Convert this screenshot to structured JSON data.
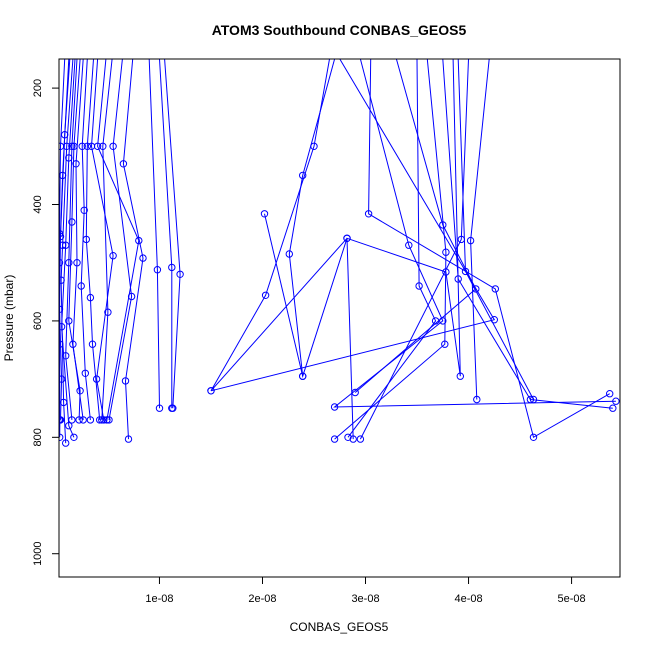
{
  "chart_data": {
    "type": "line",
    "title": "ATOM3 Southbound CONBAS_GEOS5",
    "xlabel": "CONBAS_GEOS5",
    "ylabel": "Pressure (mbar)",
    "xlim": [
      2.5e-10,
      5.47e-08
    ],
    "ylim": [
      1040,
      150
    ],
    "y_inverted": true,
    "x_ticks": [
      {
        "value": 1e-08,
        "label": "1e-08"
      },
      {
        "value": 2e-08,
        "label": "2e-08"
      },
      {
        "value": 3e-08,
        "label": "3e-08"
      },
      {
        "value": 4e-08,
        "label": "4e-08"
      },
      {
        "value": 5e-08,
        "label": "5e-08"
      }
    ],
    "y_ticks": [
      {
        "value": 200,
        "label": "200"
      },
      {
        "value": 400,
        "label": "400"
      },
      {
        "value": 600,
        "label": "600"
      },
      {
        "value": 800,
        "label": "800"
      },
      {
        "value": 1000,
        "label": "1000"
      }
    ],
    "series_color": "#0000ff",
    "marker": "open-circle",
    "grid": false,
    "series": [
      {
        "points": [
          [
            8e-10,
            150
          ],
          [
            4e-10,
            300
          ],
          [
            3e-10,
            450
          ],
          [
            2.6e-10,
            770
          ]
        ]
      },
      {
        "points": [
          [
            1.2e-09,
            150
          ],
          [
            6e-10,
            350
          ],
          [
            3e-10,
            500
          ],
          [
            3.2e-10,
            640
          ],
          [
            3.2e-10,
            800
          ],
          [
            3.4e-10,
            770
          ]
        ]
      },
      {
        "points": [
          [
            1.3e-09,
            150
          ],
          [
            8e-10,
            280
          ],
          [
            4e-10,
            455
          ],
          [
            3e-10,
            580
          ],
          [
            5e-10,
            700
          ],
          [
            4e-10,
            770
          ]
        ]
      },
      {
        "points": [
          [
            1.6e-09,
            150
          ],
          [
            1e-09,
            300
          ],
          [
            6e-10,
            470
          ],
          [
            4.5e-10,
            530
          ],
          [
            7e-10,
            740
          ],
          [
            9e-10,
            810
          ]
        ]
      },
      {
        "points": [
          [
            1.8e-09,
            150
          ],
          [
            1.2e-09,
            320
          ],
          [
            9e-10,
            470
          ],
          [
            5e-10,
            610
          ],
          [
            1.2e-09,
            780
          ],
          [
            1.7e-09,
            800
          ]
        ]
      },
      {
        "points": [
          [
            2e-09,
            150
          ],
          [
            1.5e-09,
            300
          ],
          [
            1.2e-09,
            500
          ],
          [
            9e-10,
            660
          ],
          [
            1.5e-09,
            770
          ]
        ]
      },
      {
        "points": [
          [
            2.3e-09,
            150
          ],
          [
            1.7e-09,
            300
          ],
          [
            1.5e-09,
            430
          ],
          [
            1.2e-09,
            600
          ],
          [
            2.3e-09,
            720
          ],
          [
            2.2e-09,
            770
          ]
        ]
      },
      {
        "points": [
          [
            2.6e-09,
            150
          ],
          [
            1.9e-09,
            330
          ],
          [
            2e-09,
            500
          ],
          [
            1.6e-09,
            640
          ],
          [
            2.6e-09,
            770
          ]
        ]
      },
      {
        "points": [
          [
            3e-09,
            150
          ],
          [
            2.5e-09,
            300
          ],
          [
            2.7e-09,
            410
          ],
          [
            2.4e-09,
            540
          ],
          [
            2.8e-09,
            690
          ],
          [
            3.3e-09,
            770
          ]
        ]
      },
      {
        "points": [
          [
            3.6e-09,
            150
          ],
          [
            3e-09,
            300
          ],
          [
            2.9e-09,
            460
          ],
          [
            3.3e-09,
            560
          ],
          [
            3.5e-09,
            640
          ],
          [
            4.2e-09,
            770
          ]
        ]
      },
      {
        "points": [
          [
            4e-09,
            150
          ],
          [
            3.4e-09,
            300
          ],
          [
            5.5e-09,
            488
          ],
          [
            3.9e-09,
            700
          ],
          [
            4.6e-09,
            770
          ]
        ]
      },
      {
        "points": [
          [
            4.8e-09,
            150
          ],
          [
            4e-09,
            300
          ],
          [
            8e-09,
            462
          ],
          [
            4.9e-09,
            770
          ]
        ]
      },
      {
        "points": [
          [
            5.4e-09,
            150
          ],
          [
            4.5e-09,
            300
          ],
          [
            5e-09,
            585
          ],
          [
            4.4e-09,
            770
          ]
        ]
      },
      {
        "points": [
          [
            6.4e-09,
            150
          ],
          [
            5.5e-09,
            300
          ],
          [
            7.3e-09,
            558
          ],
          [
            5.1e-09,
            770
          ]
        ]
      },
      {
        "points": [
          [
            7.4e-09,
            150
          ],
          [
            6.5e-09,
            330
          ],
          [
            8.4e-09,
            492
          ],
          [
            6.7e-09,
            703
          ],
          [
            7e-09,
            803
          ]
        ]
      },
      {
        "points": [
          [
            9e-09,
            150
          ],
          [
            9.8e-09,
            512
          ],
          [
            1e-08,
            750
          ]
        ]
      },
      {
        "points": [
          [
            1e-08,
            150
          ],
          [
            1.12e-08,
            508
          ],
          [
            1.12e-08,
            750
          ]
        ]
      },
      {
        "points": [
          [
            1.05e-08,
            150
          ],
          [
            1.2e-08,
            520
          ],
          [
            1.13e-08,
            750
          ]
        ]
      },
      {
        "points": [
          [
            2.65e-08,
            150
          ],
          [
            2.5e-08,
            300
          ],
          [
            2.03e-08,
            556
          ],
          [
            1.5e-08,
            720
          ],
          [
            2.82e-08,
            458
          ],
          [
            2.39e-08,
            695
          ],
          [
            2.02e-08,
            416
          ]
        ]
      },
      {
        "points": [
          [
            2.7e-08,
            150
          ],
          [
            2.39e-08,
            350
          ],
          [
            2.26e-08,
            485
          ],
          [
            2.39e-08,
            695
          ]
        ]
      },
      {
        "points": [
          [
            2.75e-08,
            150
          ],
          [
            4.25e-08,
            598
          ],
          [
            1.5e-08,
            720
          ]
        ]
      },
      {
        "points": [
          [
            2.95e-08,
            150
          ],
          [
            3.42e-08,
            470
          ],
          [
            3.75e-08,
            600
          ],
          [
            2.7e-08,
            748
          ],
          [
            5.43e-08,
            738
          ]
        ]
      },
      {
        "points": [
          [
            3.05e-08,
            150
          ],
          [
            3.03e-08,
            416
          ],
          [
            4.26e-08,
            545
          ],
          [
            4.63e-08,
            800
          ],
          [
            5.37e-08,
            725
          ]
        ]
      },
      {
        "points": [
          [
            3.3e-08,
            150
          ],
          [
            3.75e-08,
            435
          ],
          [
            4.07e-08,
            545
          ],
          [
            2.9e-08,
            723
          ]
        ]
      },
      {
        "points": [
          [
            3.5e-08,
            150
          ],
          [
            3.52e-08,
            540
          ],
          [
            3.68e-08,
            600
          ],
          [
            2.83e-08,
            800
          ]
        ]
      },
      {
        "points": [
          [
            3.6e-08,
            150
          ],
          [
            3.78e-08,
            482
          ],
          [
            3.77e-08,
            640
          ],
          [
            2.7e-08,
            803
          ]
        ]
      },
      {
        "points": [
          [
            3.75e-08,
            150
          ],
          [
            3.9e-08,
            528
          ],
          [
            4.6e-08,
            735
          ],
          [
            5.4e-08,
            750
          ]
        ]
      },
      {
        "points": [
          [
            4e-08,
            150
          ],
          [
            3.93e-08,
            460
          ],
          [
            2.95e-08,
            803
          ]
        ]
      },
      {
        "points": [
          [
            4.2e-08,
            150
          ],
          [
            4.02e-08,
            462
          ],
          [
            4.08e-08,
            735
          ]
        ]
      },
      {
        "points": [
          [
            3.9e-08,
            150
          ],
          [
            3.97e-08,
            515
          ],
          [
            4.63e-08,
            735
          ]
        ]
      },
      {
        "points": [
          [
            3.85e-08,
            150
          ],
          [
            3.92e-08,
            695
          ],
          [
            3.78e-08,
            516
          ],
          [
            2.82e-08,
            458
          ],
          [
            2.88e-08,
            803
          ]
        ]
      }
    ]
  }
}
